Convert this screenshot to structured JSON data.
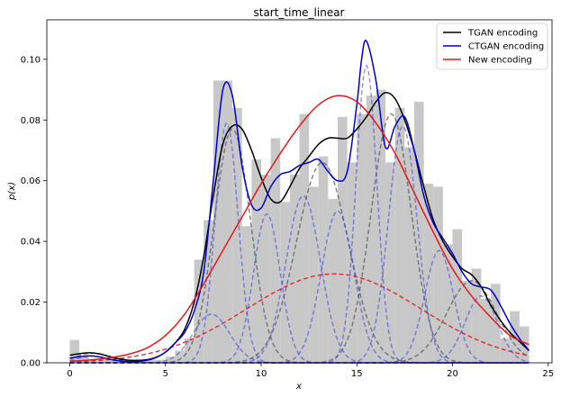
{
  "chart_data": {
    "type": "area",
    "title": "start_time_linear",
    "xlabel": "x",
    "ylabel": "p(x)",
    "xlim": [
      -1.2,
      25.2
    ],
    "ylim": [
      0,
      0.113
    ],
    "x_ticks": [
      0,
      5,
      10,
      15,
      20,
      25
    ],
    "x_tick_labels": [
      "0",
      "5",
      "10",
      "15",
      "20",
      "25"
    ],
    "y_ticks": [
      0,
      0.02,
      0.04,
      0.06,
      0.08,
      0.1
    ],
    "y_tick_labels": [
      "0.00",
      "0.02",
      "0.04",
      "0.06",
      "0.08",
      "0.10"
    ],
    "legend_position": "top-right",
    "histogram": {
      "color": "#c8c8c8",
      "bin_width": 0.5,
      "bin_starts": [
        0,
        0.5,
        1,
        1.5,
        2,
        2.5,
        3,
        3.5,
        4,
        4.5,
        5,
        5.5,
        6,
        6.5,
        7,
        7.5,
        8,
        8.5,
        9,
        9.5,
        10,
        10.5,
        11,
        11.5,
        12,
        12.5,
        13,
        13.5,
        14,
        14.5,
        15,
        15.5,
        16,
        16.5,
        17,
        17.5,
        18,
        18.5,
        19,
        19.5,
        20,
        20.5,
        21,
        21.5,
        22,
        22.5,
        23,
        23.5
      ],
      "values": [
        0.0075,
        0.002,
        0.001,
        0.001,
        0.001,
        0.001,
        0.001,
        0.001,
        0.001,
        0.001,
        0.002,
        0.004,
        0.008,
        0.034,
        0.047,
        0.093,
        0.093,
        0.084,
        0.045,
        0.067,
        0.062,
        0.074,
        0.053,
        0.062,
        0.082,
        0.058,
        0.068,
        0.054,
        0.081,
        0.066,
        0.082,
        0.088,
        0.09,
        0.066,
        0.084,
        0.071,
        0.086,
        0.059,
        0.058,
        0.039,
        0.044,
        0.027,
        0.031,
        0.021,
        0.026,
        0.008,
        0.017,
        0.012
      ]
    },
    "series": [
      {
        "name": "TGAN encoding",
        "color": "#000000",
        "style": "solid",
        "x": [
          0,
          0.5,
          1,
          1.5,
          2,
          2.5,
          3,
          3.5,
          4,
          4.5,
          5,
          5.5,
          6,
          6.5,
          7,
          7.5,
          8,
          8.5,
          9,
          9.5,
          10,
          10.5,
          11,
          11.5,
          12,
          12.5,
          13,
          13.5,
          14,
          14.5,
          15,
          15.5,
          16,
          16.5,
          17,
          17.5,
          18,
          18.5,
          19,
          19.5,
          20,
          20.5,
          21,
          21.5,
          22,
          22.5,
          23,
          23.5,
          24
        ],
        "y": [
          0.0025,
          0.003,
          0.0033,
          0.003,
          0.0022,
          0.0014,
          0.0009,
          0.0008,
          0.001,
          0.0018,
          0.0035,
          0.0065,
          0.011,
          0.02,
          0.035,
          0.055,
          0.072,
          0.078,
          0.077,
          0.07,
          0.061,
          0.054,
          0.053,
          0.058,
          0.064,
          0.068,
          0.072,
          0.074,
          0.074,
          0.074,
          0.077,
          0.081,
          0.086,
          0.089,
          0.087,
          0.08,
          0.07,
          0.058,
          0.047,
          0.04,
          0.035,
          0.031,
          0.029,
          0.025,
          0.019,
          0.014,
          0.01,
          0.007,
          0.004
        ]
      },
      {
        "name": "CTGAN encoding",
        "color": "#0000cc",
        "style": "solid",
        "x": [
          0,
          0.5,
          1,
          1.5,
          2,
          2.5,
          3,
          3.5,
          4,
          4.5,
          5,
          5.5,
          6,
          6.5,
          7,
          7.5,
          8,
          8.5,
          9,
          9.5,
          10,
          10.5,
          11,
          11.5,
          12,
          12.5,
          13,
          13.5,
          14,
          14.5,
          15,
          15.25,
          15.5,
          16,
          16.5,
          17,
          17.5,
          18,
          18.5,
          19,
          19.5,
          20,
          20.5,
          21,
          21.5,
          22,
          22.5,
          23,
          23.5,
          24
        ],
        "y": [
          0.0015,
          0.002,
          0.0023,
          0.002,
          0.0013,
          0.0007,
          0.0004,
          0.0004,
          0.0008,
          0.0017,
          0.0035,
          0.0065,
          0.01,
          0.017,
          0.03,
          0.06,
          0.09,
          0.088,
          0.065,
          0.052,
          0.051,
          0.058,
          0.062,
          0.063,
          0.065,
          0.066,
          0.067,
          0.063,
          0.06,
          0.063,
          0.085,
          0.1,
          0.106,
          0.093,
          0.071,
          0.078,
          0.081,
          0.07,
          0.055,
          0.046,
          0.041,
          0.036,
          0.03,
          0.026,
          0.025,
          0.024,
          0.019,
          0.013,
          0.008,
          0.004
        ]
      },
      {
        "name": "New encoding",
        "color": "#e31a1c",
        "style": "solid",
        "x": [
          0,
          1,
          2,
          3,
          4,
          5,
          6,
          7,
          8,
          9,
          10,
          11,
          12,
          13,
          14,
          15,
          16,
          17,
          18,
          19,
          20,
          21,
          22,
          23,
          24
        ],
        "y": [
          0.0005,
          0.0009,
          0.0016,
          0.0027,
          0.0048,
          0.009,
          0.016,
          0.026,
          0.037,
          0.048,
          0.059,
          0.069,
          0.078,
          0.085,
          0.088,
          0.086,
          0.079,
          0.069,
          0.056,
          0.043,
          0.031,
          0.022,
          0.015,
          0.009,
          0.006
        ]
      }
    ],
    "components": [
      {
        "color": "#e31a1c",
        "style": "dashed",
        "opacity": 0.9,
        "mean": 13.8,
        "sd": 4.55,
        "peak": 0.0293
      },
      {
        "color": "#555555",
        "style": "dashed",
        "opacity": 0.75,
        "mean": 1.2,
        "sd": 0.9,
        "peak": 0.0032
      },
      {
        "color": "#555555",
        "style": "dashed",
        "opacity": 0.75,
        "mean": 8.5,
        "sd": 0.95,
        "peak": 0.077
      },
      {
        "color": "#555555",
        "style": "dashed",
        "opacity": 0.75,
        "mean": 13.2,
        "sd": 1.35,
        "peak": 0.066
      },
      {
        "color": "#555555",
        "style": "dashed",
        "opacity": 0.75,
        "mean": 16.8,
        "sd": 1.05,
        "peak": 0.082
      },
      {
        "color": "#555555",
        "style": "dashed",
        "opacity": 0.75,
        "mean": 21.0,
        "sd": 1.3,
        "peak": 0.027
      },
      {
        "color": "#4040dd",
        "style": "dashed",
        "opacity": 0.6,
        "mean": 1.2,
        "sd": 0.8,
        "peak": 0.0022
      },
      {
        "color": "#4040dd",
        "style": "dashed",
        "opacity": 0.6,
        "mean": 7.4,
        "sd": 0.95,
        "peak": 0.016
      },
      {
        "color": "#4040dd",
        "style": "dashed",
        "opacity": 0.6,
        "mean": 8.2,
        "sd": 0.6,
        "peak": 0.079
      },
      {
        "color": "#4040dd",
        "style": "dashed",
        "opacity": 0.6,
        "mean": 10.3,
        "sd": 0.7,
        "peak": 0.049
      },
      {
        "color": "#4040dd",
        "style": "dashed",
        "opacity": 0.6,
        "mean": 12.2,
        "sd": 0.9,
        "peak": 0.055
      },
      {
        "color": "#4040dd",
        "style": "dashed",
        "opacity": 0.6,
        "mean": 14.0,
        "sd": 0.85,
        "peak": 0.05
      },
      {
        "color": "#4040dd",
        "style": "dashed",
        "opacity": 0.6,
        "mean": 15.5,
        "sd": 0.55,
        "peak": 0.098
      },
      {
        "color": "#4040dd",
        "style": "dashed",
        "opacity": 0.6,
        "mean": 17.4,
        "sd": 0.75,
        "peak": 0.078
      },
      {
        "color": "#4040dd",
        "style": "dashed",
        "opacity": 0.6,
        "mean": 19.3,
        "sd": 0.75,
        "peak": 0.037
      },
      {
        "color": "#4040dd",
        "style": "dashed",
        "opacity": 0.6,
        "mean": 21.5,
        "sd": 0.85,
        "peak": 0.022
      }
    ]
  }
}
